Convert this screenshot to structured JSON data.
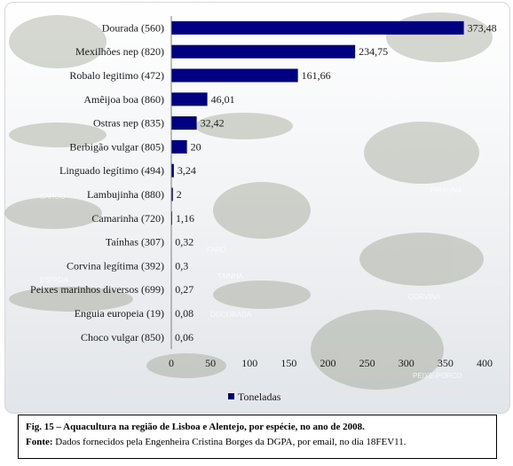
{
  "chart_data": {
    "type": "bar",
    "orientation": "horizontal",
    "categories": [
      "Dourada (560)",
      "Mexilhões nep (820)",
      "Robalo legitimo (472)",
      "Amêijoa boa (860)",
      "Ostras nep (835)",
      "Berbigão vulgar (805)",
      "Linguado legítimo (494)",
      "Lambujinha (880)",
      "Camarinha (720)",
      "Taínhas (307)",
      "Corvina legítima (392)",
      "Peixes marinhos diversos (699)",
      "Enguia europeia (19)",
      "Choco vulgar (850)"
    ],
    "values": [
      373.48,
      234.75,
      161.66,
      46.01,
      32.42,
      20,
      3.24,
      2,
      1.16,
      0.32,
      0.3,
      0.27,
      0.08,
      0.06
    ],
    "value_labels": [
      "373,48",
      "234,75",
      "161,66",
      "46,01",
      "32,42",
      "20",
      "3,24",
      "2",
      "1,16",
      "0,32",
      "0,3",
      "0,27",
      "0,08",
      "0,06"
    ],
    "series": [
      {
        "name": "Toneladas"
      }
    ],
    "xlim": [
      0,
      400
    ],
    "xticks": [
      0,
      50,
      100,
      150,
      200,
      250,
      300,
      350,
      400
    ],
    "legend_position": "bottom",
    "grid": false,
    "bar_color": "#000080"
  },
  "watermark_labels": [
    "SARGO",
    "SARGO",
    "ESPADA",
    "FARO",
    "TAINHA",
    "DOCORADA",
    "PIRAUNA",
    "CORVINA",
    "PEIXE-PORCO"
  ],
  "caption": {
    "fig_bold": "Fig. 15 – Aquacultura na região de Lisboa e Alentejo, por espécie, no ano de 2008.",
    "source_bold": "Fonte:",
    "source_text": " Dados fornecidos pela Engenheira Cristina Borges da DGPA, por email, no dia 18FEV11."
  }
}
